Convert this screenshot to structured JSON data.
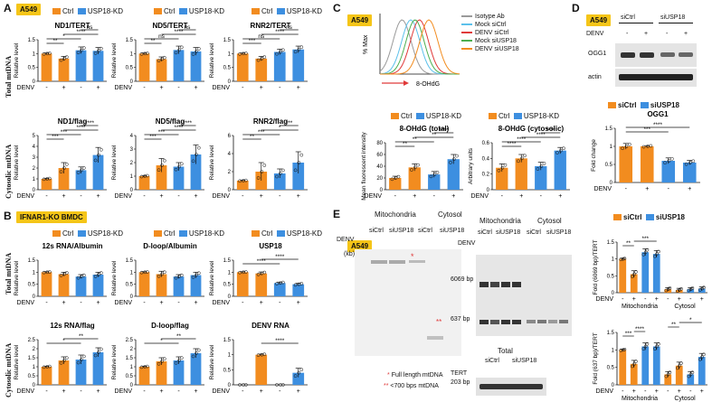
{
  "panel_labels": {
    "A": "A",
    "B": "B",
    "C": "C",
    "D": "D",
    "E": "E"
  },
  "tags": {
    "a549": "A549",
    "ifnar": "IFNAR1-KO BMDC"
  },
  "legend": {
    "ctrl": "Ctrl",
    "kd": "USP18-KD",
    "si_ctrl": "siCtrl",
    "si_usp18": "siUSP18"
  },
  "colors": {
    "ctrl": "#f28c1f",
    "kd": "#3d8fe0",
    "line": "#111111",
    "sig": "#111111"
  },
  "row_labels": {
    "total": "Total mtDNA",
    "cyto": "Cytosolic mtDNA",
    "rel": "Relative level"
  },
  "x_labels": {
    "denv": "DENV",
    "minus": "-",
    "plus": "+"
  },
  "chart_data": [
    {
      "id": "a1",
      "type": "bar",
      "title": "ND1/TERT",
      "ylabel": "Relative level",
      "ylim": [
        0,
        1.5
      ],
      "yticks": [
        "0",
        "0.5",
        "1",
        "1.5"
      ],
      "values": [
        1.0,
        0.82,
        1.12,
        1.1
      ],
      "errors": [
        0.02,
        0.08,
        0.12,
        0.12
      ],
      "sig": [
        {
          "a": 0,
          "b": 1,
          "t": "**"
        },
        {
          "a": 0,
          "b": 2,
          "t": "*"
        },
        {
          "a": 1,
          "b": 3,
          "t": "****"
        },
        {
          "a": 2,
          "b": 3,
          "t": "ns"
        }
      ]
    },
    {
      "id": "a2",
      "type": "bar",
      "title": "ND5/TERT",
      "ylabel": "Relative level",
      "ylim": [
        0,
        1.5
      ],
      "yticks": [
        "0",
        "0.5",
        "1",
        "1.5"
      ],
      "values": [
        1.0,
        0.8,
        1.13,
        1.08
      ],
      "errors": [
        0.02,
        0.08,
        0.14,
        0.14
      ],
      "sig": [
        {
          "a": 0,
          "b": 1,
          "t": "**"
        },
        {
          "a": 0,
          "b": 2,
          "t": "ns"
        },
        {
          "a": 1,
          "b": 3,
          "t": "****"
        },
        {
          "a": 2,
          "b": 3,
          "t": "ns"
        }
      ]
    },
    {
      "id": "a3",
      "type": "bar",
      "title": "RNR2/TERT",
      "ylabel": "Relative level",
      "ylim": [
        0,
        1.5
      ],
      "yticks": [
        "0",
        "0.5",
        "1",
        "1.5"
      ],
      "values": [
        1.0,
        0.82,
        1.06,
        1.15
      ],
      "errors": [
        0.02,
        0.08,
        0.1,
        0.12
      ],
      "sig": [
        {
          "a": 0,
          "b": 1,
          "t": "***"
        },
        {
          "a": 0,
          "b": 2,
          "t": "ns"
        },
        {
          "a": 1,
          "b": 3,
          "t": "****"
        },
        {
          "a": 2,
          "b": 3,
          "t": "ns"
        }
      ]
    },
    {
      "id": "a4",
      "type": "bar",
      "title": "ND1/flag",
      "ylabel": "Relative level",
      "ylim": [
        0,
        5
      ],
      "yticks": [
        "0",
        "1",
        "2",
        "3",
        "4",
        "5"
      ],
      "values": [
        1.0,
        2.0,
        1.8,
        3.2
      ],
      "errors": [
        0.05,
        0.5,
        0.3,
        0.7
      ],
      "sig": [
        {
          "a": 0,
          "b": 1,
          "t": "***"
        },
        {
          "a": 0,
          "b": 2,
          "t": "***"
        },
        {
          "a": 1,
          "b": 3,
          "t": "****"
        },
        {
          "a": 2,
          "b": 3,
          "t": "****"
        }
      ]
    },
    {
      "id": "a5",
      "type": "bar",
      "title": "ND5/flag",
      "ylabel": "Relative level",
      "ylim": [
        0,
        4
      ],
      "yticks": [
        "0",
        "1",
        "2",
        "3",
        "4"
      ],
      "values": [
        1.0,
        1.8,
        1.7,
        2.6
      ],
      "errors": [
        0.05,
        0.5,
        0.3,
        0.7
      ],
      "sig": [
        {
          "a": 0,
          "b": 1,
          "t": "***"
        },
        {
          "a": 0,
          "b": 2,
          "t": "***"
        },
        {
          "a": 1,
          "b": 3,
          "t": "****"
        },
        {
          "a": 2,
          "b": 3,
          "t": "****"
        }
      ]
    },
    {
      "id": "a6",
      "type": "bar",
      "title": "RNR2/flag",
      "ylabel": "Relative level",
      "ylim": [
        0,
        6
      ],
      "yticks": [
        "0",
        "2",
        "4",
        "6"
      ],
      "values": [
        1.0,
        2.0,
        1.8,
        3.0
      ],
      "errors": [
        0.05,
        1.0,
        0.5,
        1.2
      ],
      "sig": [
        {
          "a": 0,
          "b": 1,
          "t": "**"
        },
        {
          "a": 0,
          "b": 2,
          "t": "***"
        },
        {
          "a": 1,
          "b": 3,
          "t": "*"
        },
        {
          "a": 2,
          "b": 3,
          "t": "***"
        }
      ]
    },
    {
      "id": "b1",
      "type": "bar",
      "title": "12s RNA/Albumin",
      "ylabel": "Relative level",
      "ylim": [
        0,
        1.5
      ],
      "yticks": [
        "0",
        "0.5",
        "1",
        "1.5"
      ],
      "values": [
        1.0,
        0.92,
        0.82,
        0.9
      ],
      "errors": [
        0.02,
        0.08,
        0.08,
        0.1
      ],
      "sig": []
    },
    {
      "id": "b2",
      "type": "bar",
      "title": "D-loop/Albumin",
      "ylabel": "Relative level",
      "ylim": [
        0,
        1.5
      ],
      "yticks": [
        "0",
        "0.5",
        "1",
        "1.5"
      ],
      "values": [
        1.0,
        0.92,
        0.82,
        0.88
      ],
      "errors": [
        0.02,
        0.12,
        0.08,
        0.12
      ],
      "sig": []
    },
    {
      "id": "b3",
      "type": "bar",
      "title": "USP18",
      "ylabel": "Relative level",
      "ylim": [
        0,
        1.5
      ],
      "yticks": [
        "0",
        "0.5",
        "1",
        "1.5"
      ],
      "values": [
        1.0,
        0.95,
        0.55,
        0.5
      ],
      "errors": [
        0.02,
        0.06,
        0.04,
        0.04
      ],
      "sig": [
        {
          "a": 0,
          "b": 2,
          "t": "****"
        },
        {
          "a": 1,
          "b": 3,
          "t": "****"
        }
      ]
    },
    {
      "id": "b4",
      "type": "bar",
      "title": "12s RNA/flag",
      "ylabel": "Relative level",
      "ylim": [
        0,
        2.5
      ],
      "yticks": [
        "0",
        "0.5",
        "1",
        "1.5",
        "2",
        "2.5"
      ],
      "values": [
        1.0,
        1.35,
        1.4,
        1.8
      ],
      "errors": [
        0.03,
        0.2,
        0.25,
        0.25
      ],
      "sig": [
        {
          "a": 0,
          "b": 2,
          "t": "*"
        },
        {
          "a": 1,
          "b": 3,
          "t": "**"
        }
      ]
    },
    {
      "id": "b5",
      "type": "bar",
      "title": "D-loop/flag",
      "ylabel": "Relative level",
      "ylim": [
        0,
        2.5
      ],
      "yticks": [
        "0",
        "0.5",
        "1",
        "1.5",
        "2",
        "2.5"
      ],
      "values": [
        1.0,
        1.3,
        1.35,
        1.75
      ],
      "errors": [
        0.03,
        0.2,
        0.2,
        0.25
      ],
      "sig": [
        {
          "a": 0,
          "b": 2,
          "t": "*"
        },
        {
          "a": 1,
          "b": 3,
          "t": "**"
        }
      ]
    },
    {
      "id": "b6",
      "type": "bar",
      "title": "DENV RNA",
      "ylabel": "Relative level",
      "ylim": [
        0,
        1.5
      ],
      "yticks": [
        "0",
        "0.5",
        "1",
        "1.5"
      ],
      "values": [
        0.0,
        1.0,
        0.0,
        0.4
      ],
      "errors": [
        0,
        0.02,
        0,
        0.15
      ],
      "sig": [
        {
          "a": 1,
          "b": 3,
          "t": "****"
        }
      ]
    },
    {
      "id": "c2",
      "type": "bar",
      "title": "8-OHdG (total)",
      "ylabel": "Mean fluorescent intensity",
      "ylim": [
        0,
        80
      ],
      "yticks": [
        "0",
        "20",
        "40",
        "60",
        "80"
      ],
      "values": [
        20,
        38,
        26,
        52
      ],
      "errors": [
        3,
        6,
        5,
        8
      ],
      "sig": [
        {
          "a": 0,
          "b": 1,
          "t": "**"
        },
        {
          "a": 0,
          "b": 2,
          "t": "**"
        },
        {
          "a": 1,
          "b": 3,
          "t": "**"
        },
        {
          "a": 2,
          "b": 3,
          "t": "****"
        }
      ]
    },
    {
      "id": "c3",
      "type": "bar",
      "title": "8-OHdG (cytosolic)",
      "ylabel": "Arbitrary units",
      "ylim": [
        0,
        0.6
      ],
      "yticks": [
        "0",
        "0.2",
        "0.4",
        "0.6"
      ],
      "values": [
        0.28,
        0.4,
        0.3,
        0.5
      ],
      "errors": [
        0.05,
        0.05,
        0.05,
        0.04
      ],
      "sig": [
        {
          "a": 0,
          "b": 1,
          "t": "****"
        },
        {
          "a": 0,
          "b": 2,
          "t": "****"
        },
        {
          "a": 1,
          "b": 3,
          "t": "****"
        },
        {
          "a": 2,
          "b": 3,
          "t": "****"
        }
      ]
    },
    {
      "id": "d",
      "type": "bar",
      "title": "OGG1",
      "ylabel": "Fold change",
      "ylim": [
        0,
        1.5
      ],
      "yticks": [
        "0",
        "0.5",
        "1",
        "1.5"
      ],
      "values": [
        1.0,
        1.0,
        0.6,
        0.55
      ],
      "errors": [
        0.08,
        0.02,
        0.08,
        0.06
      ],
      "sig": [
        {
          "a": 0,
          "b": 2,
          "t": "***"
        },
        {
          "a": 0,
          "b": 3,
          "t": "****"
        }
      ]
    },
    {
      "id": "e1",
      "type": "bar",
      "title": "",
      "ylabel": "Fold (6069 bp)/TERT",
      "ylim": [
        0,
        1.5
      ],
      "yticks": [
        "0",
        "0.5",
        "1",
        "1.5"
      ],
      "values": [
        1.0,
        0.55,
        1.2,
        1.15,
        0.1,
        0.08,
        0.1,
        0.12
      ],
      "errors": [
        0.02,
        0.1,
        0.1,
        0.1,
        0.05,
        0.05,
        0.05,
        0.05
      ],
      "sig": [
        {
          "a": 0,
          "b": 1,
          "t": "**"
        },
        {
          "a": 1,
          "b": 3,
          "t": "***"
        }
      ]
    },
    {
      "id": "e2",
      "type": "bar",
      "title": "",
      "ylabel": "Fold (637 bp)/TERT",
      "ylim": [
        0,
        1.5
      ],
      "yticks": [
        "0",
        "0.5",
        "1",
        "1.5"
      ],
      "values": [
        1.0,
        0.6,
        1.1,
        1.1,
        0.3,
        0.55,
        0.3,
        0.8
      ],
      "errors": [
        0.02,
        0.1,
        0.1,
        0.1,
        0.08,
        0.1,
        0.08,
        0.1
      ],
      "sig": [
        {
          "a": 0,
          "b": 1,
          "t": "***"
        },
        {
          "a": 1,
          "b": 2,
          "t": "****"
        },
        {
          "a": 4,
          "b": 5,
          "t": "**"
        },
        {
          "a": 5,
          "b": 7,
          "t": "*"
        }
      ]
    },
    {
      "id": "c1",
      "type": "line",
      "title": "",
      "ylabel": "% Max",
      "xlabel": "8-OHdG",
      "series": [
        {
          "name": "Isotype Ab",
          "color": "#9a9a9a",
          "peak": 0.18
        },
        {
          "name": "Mock siCtrl",
          "color": "#5bc0eb",
          "peak": 0.3
        },
        {
          "name": "DENV siCtrl",
          "color": "#e03a3a",
          "peak": 0.42
        },
        {
          "name": "Mock siUSP18",
          "color": "#4caf50",
          "peak": 0.36
        },
        {
          "name": "DENV siUSP18",
          "color": "#f28c1f",
          "peak": 0.55
        }
      ]
    }
  ],
  "c1_legend": [
    "Isotype Ab",
    "Mock siCtrl",
    "DENV siCtrl",
    "Mock siUSP18",
    "DENV siUSP18"
  ],
  "d_blot": {
    "si_ctrl": "siCtrl",
    "si_usp18": "siUSP18",
    "ogg1": "OGG1",
    "actin": "actin",
    "denv": "DENV"
  },
  "e_blot": {
    "mito": "Mitochondria",
    "cyto": "Cytosol",
    "kb": "(kb)",
    "ladder": [
      "14",
      "5",
      "3",
      "2",
      "1.5",
      "1",
      "0.5",
      "0.2"
    ],
    "bp6069": "6069 bp",
    "bp637": "637 bp",
    "total": "Total",
    "tert": "TERT",
    "bp203": "203 bp",
    "note1": "Full length mtDNA",
    "note2": "<700 bps mtDNA",
    "star1": "*",
    "star2": "**"
  }
}
